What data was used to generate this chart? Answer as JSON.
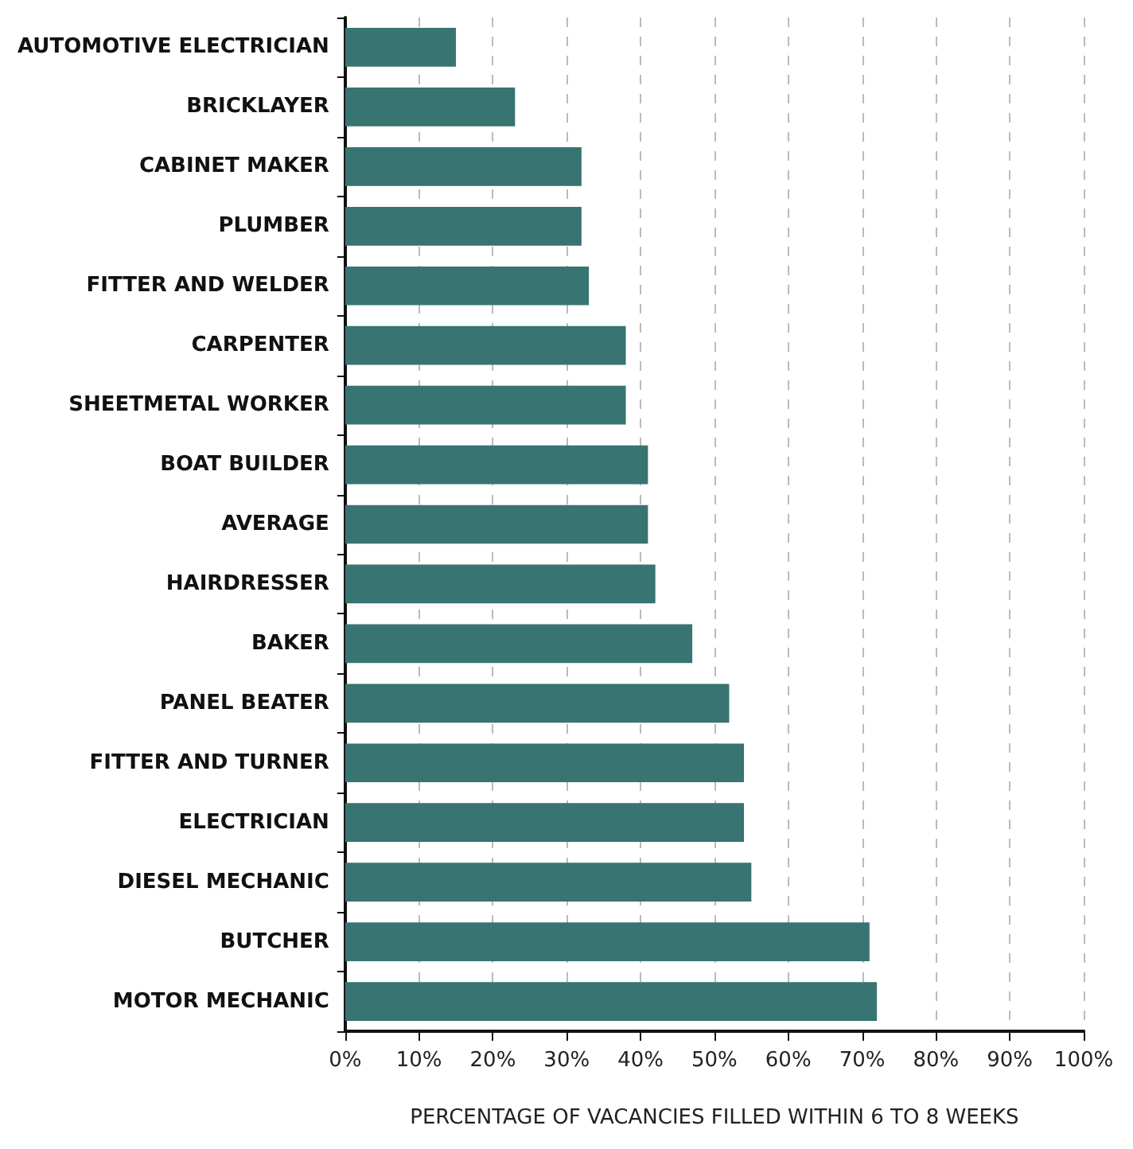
{
  "chart_data": {
    "type": "bar",
    "orientation": "horizontal",
    "xlabel": "PERCENTAGE OF VACANCIES FILLED WITHIN 6 TO 8 WEEKS",
    "categories": [
      "AUTOMOTIVE ELECTRICIAN",
      "BRICKLAYER",
      "CABINET MAKER",
      "PLUMBER",
      "FITTER AND WELDER",
      "CARPENTER",
      "SHEETMETAL WORKER",
      "BOAT BUILDER",
      "AVERAGE",
      "HAIRDRESSER",
      "BAKER",
      "PANEL BEATER",
      "FITTER AND TURNER",
      "ELECTRICIAN",
      "DIESEL MECHANIC",
      "BUTCHER",
      "MOTOR MECHANIC"
    ],
    "values": [
      15,
      23,
      32,
      32,
      33,
      38,
      38,
      41,
      41,
      42,
      47,
      52,
      54,
      54,
      55,
      71,
      72
    ],
    "color": "#387471",
    "xlim": [
      0,
      100
    ],
    "xticks": [
      {
        "value": 0,
        "label": "0%"
      },
      {
        "value": 10,
        "label": "10%"
      },
      {
        "value": 20,
        "label": "20%"
      },
      {
        "value": 30,
        "label": "30%"
      },
      {
        "value": 40,
        "label": "40%"
      },
      {
        "value": 50,
        "label": "50%"
      },
      {
        "value": 60,
        "label": "60%"
      },
      {
        "value": 70,
        "label": "70%"
      },
      {
        "value": 80,
        "label": "80%"
      },
      {
        "value": 90,
        "label": "90%"
      },
      {
        "value": 100,
        "label": "100%"
      }
    ],
    "grid": "x"
  }
}
